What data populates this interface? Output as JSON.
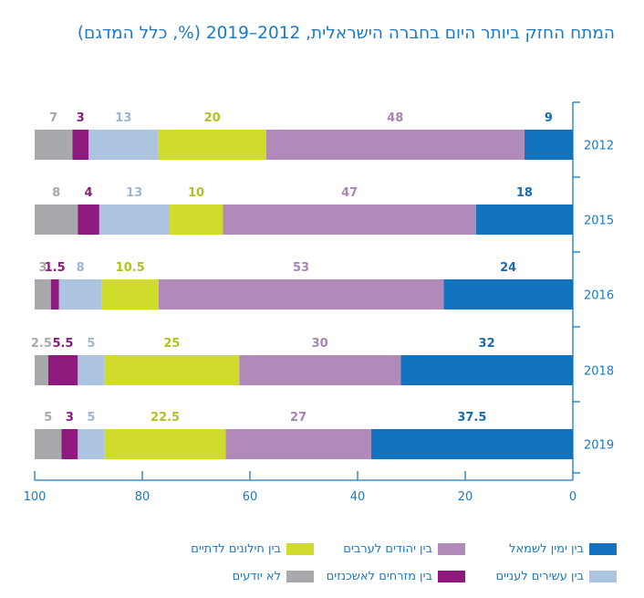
{
  "title": "המתח החזק ביותר היום בחברה הישראלית, 2012–2019 (%, כלל המדגם)",
  "colors": {
    "axis": "#1a7ac4",
    "gridline": "#1a7ac4"
  },
  "chart_data": {
    "type": "bar",
    "orientation": "horizontal-stacked",
    "direction": "right-to-left",
    "title": "המתח החזק ביותר היום בחברה הישראלית, 2012–2019 (%, כלל המדגם)",
    "xlabel": "",
    "ylabel": "",
    "xlim": [
      0,
      100
    ],
    "x_ticks": [
      "0",
      "20",
      "40",
      "60",
      "80",
      "100"
    ],
    "categories": [
      "2012",
      "2015",
      "2016",
      "2018",
      "2019"
    ],
    "series": [
      {
        "name": "בין ימין לשמאל",
        "color": "#1274c0",
        "label_color": "#1a6cae",
        "values": [
          9,
          18,
          24,
          32,
          37.5
        ],
        "labels": [
          "9",
          "18",
          "24",
          "32",
          "37.5"
        ]
      },
      {
        "name": "בין יהודים לערבים",
        "color": "#b28ab9",
        "label_color": "#a884b3",
        "values": [
          48,
          47,
          53,
          30,
          27
        ],
        "labels": [
          "48",
          "47",
          "53",
          "30",
          "27"
        ]
      },
      {
        "name": "בין חילונים לדתיים",
        "color": "#cfdc2c",
        "label_color": "#b3c11f",
        "values": [
          20,
          10,
          10.5,
          25,
          22.5
        ],
        "labels": [
          "20",
          "10",
          "10.5",
          "25",
          "22.5"
        ]
      },
      {
        "name": "בין עשירים לעניים",
        "color": "#adc4e0",
        "label_color": "#9db5d6",
        "values": [
          13,
          13,
          8,
          5,
          5
        ],
        "labels": [
          "13",
          "13",
          "8",
          "5",
          "5"
        ]
      },
      {
        "name": "בין מזרחים לאשכנזים",
        "color": "#8e1a7e",
        "label_color": "#8e1a7e",
        "values": [
          3,
          4,
          1.5,
          5.5,
          3
        ],
        "labels": [
          "3",
          "4",
          "1.5",
          "5.5",
          "3"
        ]
      },
      {
        "name": "לא יודעים",
        "color": "#a7a9ac",
        "label_color": "#a7a9ac",
        "values": [
          7,
          8,
          3,
          2.5,
          5
        ],
        "labels": [
          "7",
          "8",
          "3",
          "2.5",
          "5"
        ]
      }
    ],
    "legend": "bottom"
  }
}
